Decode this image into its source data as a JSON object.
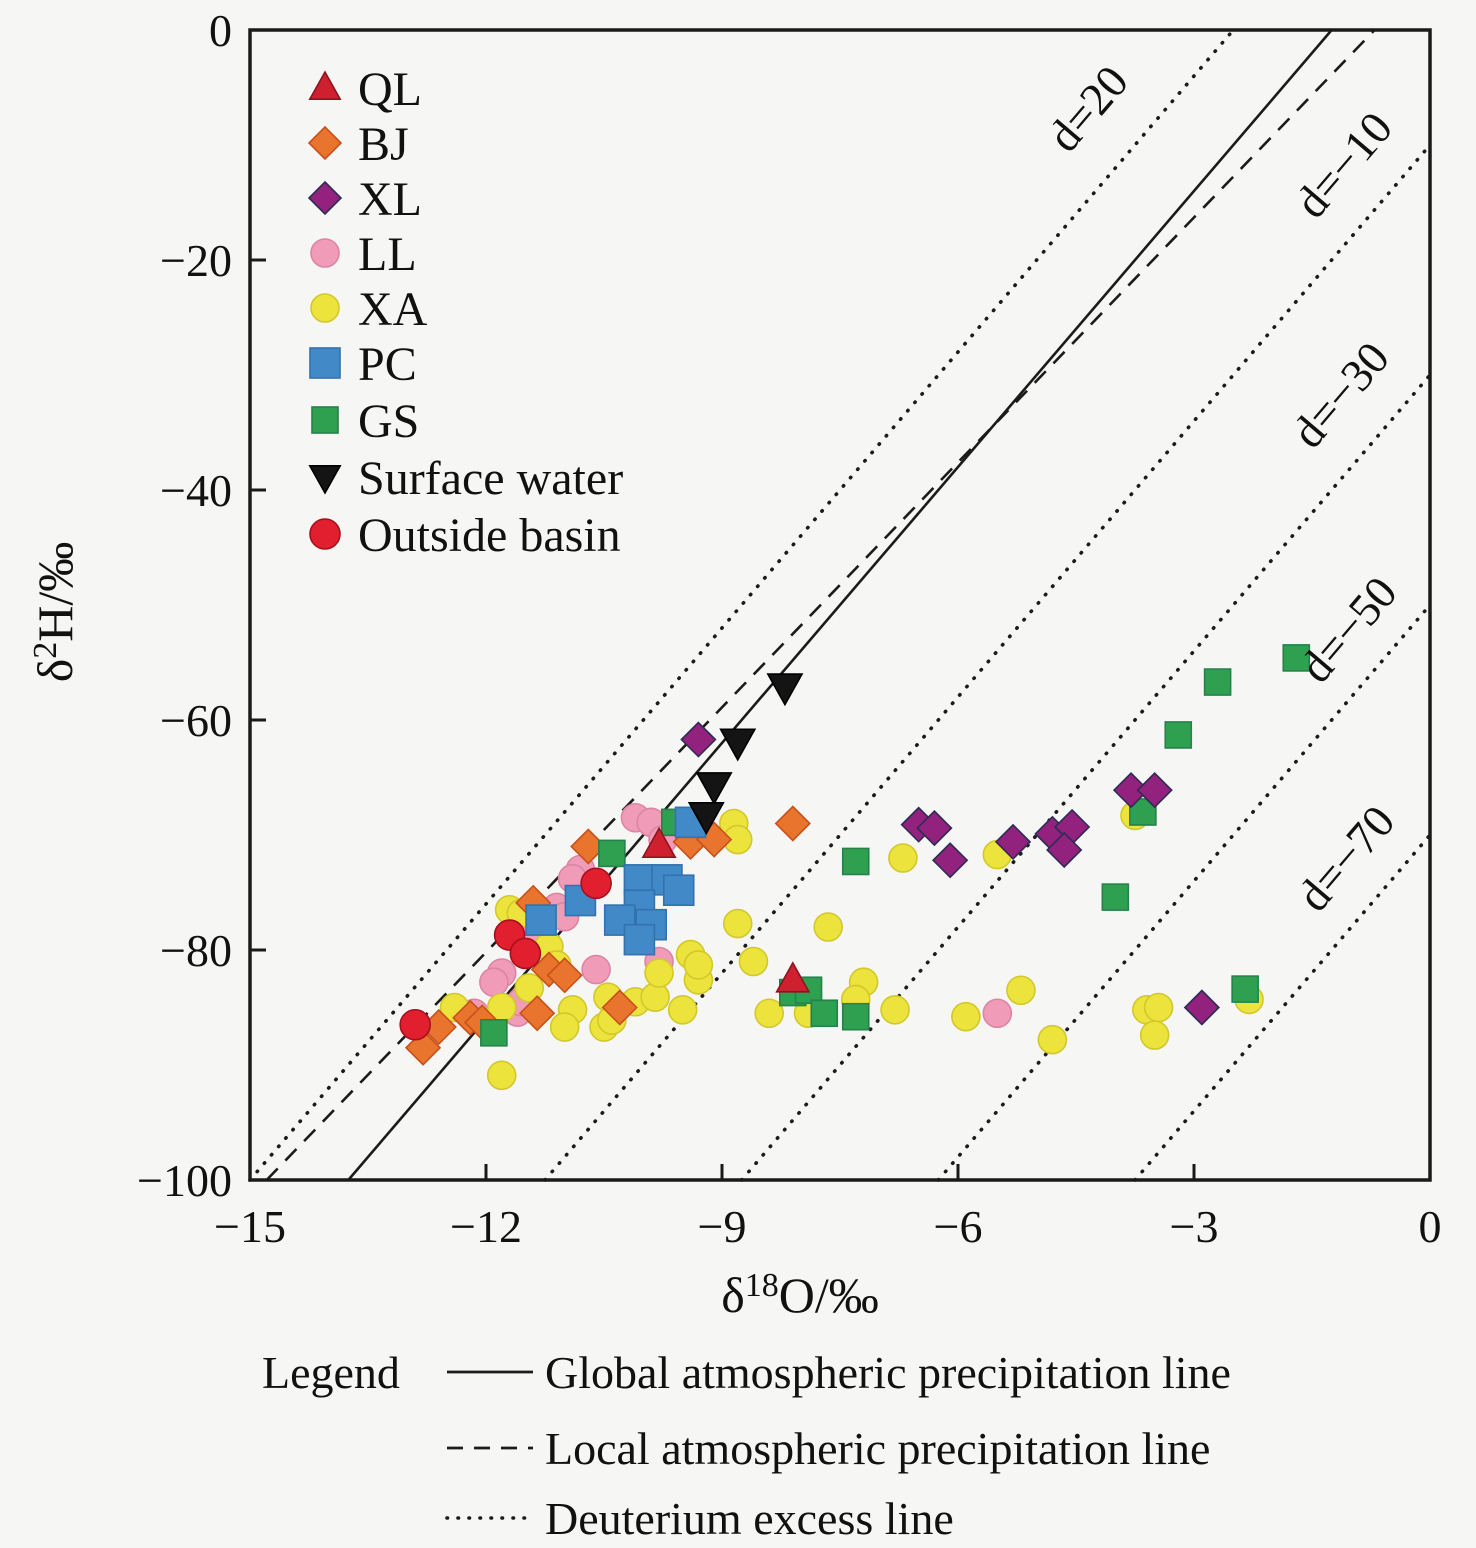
{
  "figure": {
    "background": "#f6f6f4",
    "frame_color": "#1a1a1a"
  },
  "axes": {
    "x": {
      "label_delta": "δ",
      "label_sup": "18",
      "label_rest": "O/‰",
      "min": -15,
      "max": 0,
      "ticks": [
        -15,
        -12,
        -9,
        -6,
        -3,
        0
      ],
      "tick_labels": [
        "−15",
        "−12",
        "−9",
        "−6",
        "−3",
        "0"
      ]
    },
    "y": {
      "label_delta": "δ",
      "label_sup": "2",
      "label_rest": "H/‰",
      "min": -100,
      "max": 0,
      "ticks": [
        0,
        -20,
        -40,
        -60,
        -80,
        -100
      ],
      "tick_labels": [
        "0",
        "−20",
        "−40",
        "−60",
        "−80",
        "−100"
      ]
    }
  },
  "chart_data": {
    "type": "scatter",
    "xlabel": "δ18O/‰",
    "ylabel": "δ2H/‰",
    "xlim": [
      -15,
      0
    ],
    "ylim": [
      -100,
      0
    ],
    "grid": false,
    "legend_position": "upper-left-inside",
    "series": [
      {
        "name": "QL",
        "marker": "triangle-up",
        "color": "#cf2030",
        "edge": "#8c1420",
        "size": 17,
        "points": [
          [
            -9.8,
            -70.9
          ],
          [
            -8.1,
            -82.6
          ]
        ]
      },
      {
        "name": "BJ",
        "marker": "diamond",
        "color": "#e8742d",
        "edge": "#c7511a",
        "size": 17,
        "points": [
          [
            -12.8,
            -88.5
          ],
          [
            -12.6,
            -86.7
          ],
          [
            -12.2,
            -85.9
          ],
          [
            -12.05,
            -86.3
          ],
          [
            -11.4,
            -75.9
          ],
          [
            -11.35,
            -85.5
          ],
          [
            -11.2,
            -81.7
          ],
          [
            -11.0,
            -82.2
          ],
          [
            -10.3,
            -85.0
          ],
          [
            -10.7,
            -71.0
          ],
          [
            -9.4,
            -70.6
          ],
          [
            -9.1,
            -70.4
          ],
          [
            -8.1,
            -69.0
          ]
        ]
      },
      {
        "name": "XL",
        "marker": "diamond",
        "color": "#93217e",
        "edge": "#2c2c54",
        "size": 17,
        "points": [
          [
            -9.3,
            -61.7
          ],
          [
            -6.5,
            -69.1
          ],
          [
            -6.3,
            -69.4
          ],
          [
            -6.1,
            -72.2
          ],
          [
            -5.3,
            -70.6
          ],
          [
            -4.8,
            -69.9
          ],
          [
            -4.55,
            -69.3
          ],
          [
            -4.65,
            -71.3
          ],
          [
            -3.8,
            -66.1
          ],
          [
            -3.5,
            -66.1
          ],
          [
            -2.9,
            -85.0
          ]
        ]
      },
      {
        "name": "LL",
        "marker": "circle",
        "color": "#f09cb8",
        "edge": "#dd84a6",
        "size": 14,
        "points": [
          [
            -11.8,
            -82.0
          ],
          [
            -11.9,
            -82.8
          ],
          [
            -12.15,
            -85.5
          ],
          [
            -11.6,
            -85.4
          ],
          [
            -11.55,
            -84.5
          ],
          [
            -11.4,
            -78.5
          ],
          [
            -11.1,
            -76.3
          ],
          [
            -11.0,
            -77.1
          ],
          [
            -10.8,
            -73.0
          ],
          [
            -10.9,
            -73.8
          ],
          [
            -10.6,
            -81.7
          ],
          [
            -9.8,
            -81.0
          ],
          [
            -10.1,
            -68.5
          ],
          [
            -9.9,
            -68.9
          ],
          [
            -9.75,
            -70.4
          ],
          [
            -5.5,
            -85.5
          ]
        ]
      },
      {
        "name": "XA",
        "marker": "circle",
        "color": "#ece43c",
        "edge": "#d2c82c",
        "size": 14,
        "points": [
          [
            -12.4,
            -85.0
          ],
          [
            -11.8,
            -85.0
          ],
          [
            -11.8,
            -90.9
          ],
          [
            -11.7,
            -76.5
          ],
          [
            -11.55,
            -76.8
          ],
          [
            -11.45,
            -83.3
          ],
          [
            -11.2,
            -79.7
          ],
          [
            -11.1,
            -81.3
          ],
          [
            -10.9,
            -85.2
          ],
          [
            -11.0,
            -86.7
          ],
          [
            -10.45,
            -84.1
          ],
          [
            -10.5,
            -86.7
          ],
          [
            -10.4,
            -86.1
          ],
          [
            -10.1,
            -84.5
          ],
          [
            -9.85,
            -84.1
          ],
          [
            -9.8,
            -82.0
          ],
          [
            -9.5,
            -85.2
          ],
          [
            -9.4,
            -80.4
          ],
          [
            -9.3,
            -82.6
          ],
          [
            -9.3,
            -81.3
          ],
          [
            -8.85,
            -69.0
          ],
          [
            -8.8,
            -70.4
          ],
          [
            -8.8,
            -77.7
          ],
          [
            -8.6,
            -81.0
          ],
          [
            -8.4,
            -85.5
          ],
          [
            -7.9,
            -85.5
          ],
          [
            -7.65,
            -78.0
          ],
          [
            -7.2,
            -82.8
          ],
          [
            -7.3,
            -84.3
          ],
          [
            -6.8,
            -85.2
          ],
          [
            -6.7,
            -72.0
          ],
          [
            -5.9,
            -85.8
          ],
          [
            -5.5,
            -71.7
          ],
          [
            -5.2,
            -83.5
          ],
          [
            -4.8,
            -87.8
          ],
          [
            -3.75,
            -68.3
          ],
          [
            -3.6,
            -85.2
          ],
          [
            -3.45,
            -85.0
          ],
          [
            -3.5,
            -87.4
          ],
          [
            -2.3,
            -84.3
          ]
        ]
      },
      {
        "name": "PC",
        "marker": "square",
        "color": "#4289c8",
        "edge": "#3372ad",
        "size": 15,
        "points": [
          [
            -10.05,
            -73.9
          ],
          [
            -9.7,
            -73.9
          ],
          [
            -9.55,
            -74.8
          ],
          [
            -10.05,
            -76.1
          ],
          [
            -10.3,
            -77.4
          ],
          [
            -9.9,
            -77.8
          ],
          [
            -10.05,
            -79.1
          ],
          [
            -11.3,
            -77.4
          ],
          [
            -9.4,
            -68.9
          ],
          [
            -10.8,
            -75.7
          ]
        ]
      },
      {
        "name": "GS",
        "marker": "square",
        "color": "#2fa04f",
        "edge": "#25814d",
        "size": 13,
        "points": [
          [
            -10.4,
            -71.6
          ],
          [
            -9.6,
            -68.9
          ],
          [
            -11.9,
            -87.2
          ],
          [
            -8.1,
            -83.7
          ],
          [
            -7.9,
            -83.5
          ],
          [
            -7.7,
            -85.5
          ],
          [
            -7.3,
            -85.8
          ],
          [
            -7.3,
            -72.3
          ],
          [
            -4.0,
            -75.4
          ],
          [
            -3.2,
            -61.3
          ],
          [
            -2.7,
            -56.7
          ],
          [
            -1.7,
            -54.6
          ],
          [
            -3.65,
            -68.0
          ],
          [
            -2.35,
            -83.4
          ]
        ]
      },
      {
        "name": "Surface water",
        "marker": "triangle-down",
        "color": "#141414",
        "edge": "#000000",
        "size": 18,
        "points": [
          [
            -8.2,
            -57.1
          ],
          [
            -8.8,
            -61.9
          ],
          [
            -9.1,
            -65.7
          ],
          [
            -9.2,
            -68.3
          ]
        ]
      },
      {
        "name": "Outside basin",
        "marker": "circle",
        "color": "#e21f2f",
        "edge": "#a80f1e",
        "size": 15,
        "points": [
          [
            -12.9,
            -86.5
          ],
          [
            -11.7,
            -78.7
          ],
          [
            -11.5,
            -80.3
          ],
          [
            -10.6,
            -74.2
          ]
        ]
      }
    ],
    "reference_lines": [
      {
        "name": "Global atmospheric precipitation line",
        "style": "solid",
        "slope": 8,
        "intercept": 10
      },
      {
        "name": "Local atmospheric precipitation line",
        "style": "dashed",
        "slope": 7.1,
        "intercept": 5
      },
      {
        "name": "Deuterium excess line d=20",
        "style": "dotted",
        "slope": 8,
        "intercept": 20
      },
      {
        "name": "Deuterium excess line d=-10",
        "style": "dotted",
        "slope": 8,
        "intercept": -10
      },
      {
        "name": "Deuterium excess line d=-30",
        "style": "dotted",
        "slope": 8,
        "intercept": -30
      },
      {
        "name": "Deuterium excess line d=-50",
        "style": "dotted",
        "slope": 8,
        "intercept": -50
      },
      {
        "name": "Deuterium excess line d=-70",
        "style": "dotted",
        "slope": 8,
        "intercept": -70
      }
    ],
    "line_labels": [
      {
        "text": "d=20",
        "x": -4.2,
        "y": -7.7,
        "rotation": -49.5
      },
      {
        "text": "d=−10",
        "x": -0.95,
        "y": -12.6,
        "rotation": -49.5
      },
      {
        "text": "d=−30",
        "x": -0.99,
        "y": -32.6,
        "rotation": -49.5
      },
      {
        "text": "d=−50",
        "x": -0.89,
        "y": -53.0,
        "rotation": -49.5
      },
      {
        "text": "d=−70",
        "x": -0.92,
        "y": -72.9,
        "rotation": -49.5
      }
    ]
  },
  "plot_legend": {
    "items": [
      "QL",
      "BJ",
      "XL",
      "LL",
      "XA",
      "PC",
      "GS",
      "Surface water",
      "Outside basin"
    ]
  },
  "bottom_legend": {
    "title": "Legend",
    "items": [
      {
        "style": "solid",
        "label": "Global atmospheric precipitation line"
      },
      {
        "style": "dashed",
        "label": "Local atmospheric precipitation line"
      },
      {
        "style": "dotted",
        "label": "Deuterium excess line"
      }
    ]
  }
}
